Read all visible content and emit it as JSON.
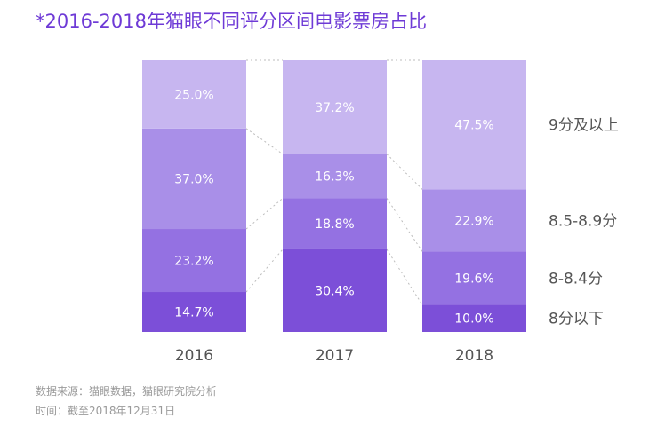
{
  "title": "*2016-2018年猫眼不同评分区间电影票房占比",
  "footer": {
    "source": "数据来源：猫眼数据，猫眼研究院分析",
    "time": "时间：截至2018年12月31日"
  },
  "chart_data": {
    "type": "bar",
    "stacked": true,
    "percent": true,
    "title": "*2016-2018年猫眼不同评分区间电影票房占比",
    "categories": [
      "2016",
      "2017",
      "2018"
    ],
    "series": [
      {
        "name": "8分以下",
        "values": [
          14.7,
          30.4,
          10.0
        ],
        "labels": [
          "14.7%",
          "30.4%",
          "10.0%"
        ],
        "color": "#7c4fd8"
      },
      {
        "name": "8-8.4分",
        "values": [
          23.2,
          18.8,
          19.6
        ],
        "labels": [
          "23.2%",
          "18.8%",
          "19.6%"
        ],
        "color": "#9471e2"
      },
      {
        "name": "8.5-8.9分",
        "values": [
          37.0,
          16.3,
          22.9
        ],
        "labels": [
          "37.0%",
          "16.3%",
          "22.9%"
        ],
        "color": "#a98fe8"
      },
      {
        "name": "9分及以上",
        "values": [
          25.0,
          37.2,
          47.5
        ],
        "labels": [
          "25.0%",
          "37.2%",
          "47.5%"
        ],
        "color": "#c7b6f0"
      }
    ],
    "legend_position": "right",
    "ylim": [
      0,
      100
    ]
  }
}
